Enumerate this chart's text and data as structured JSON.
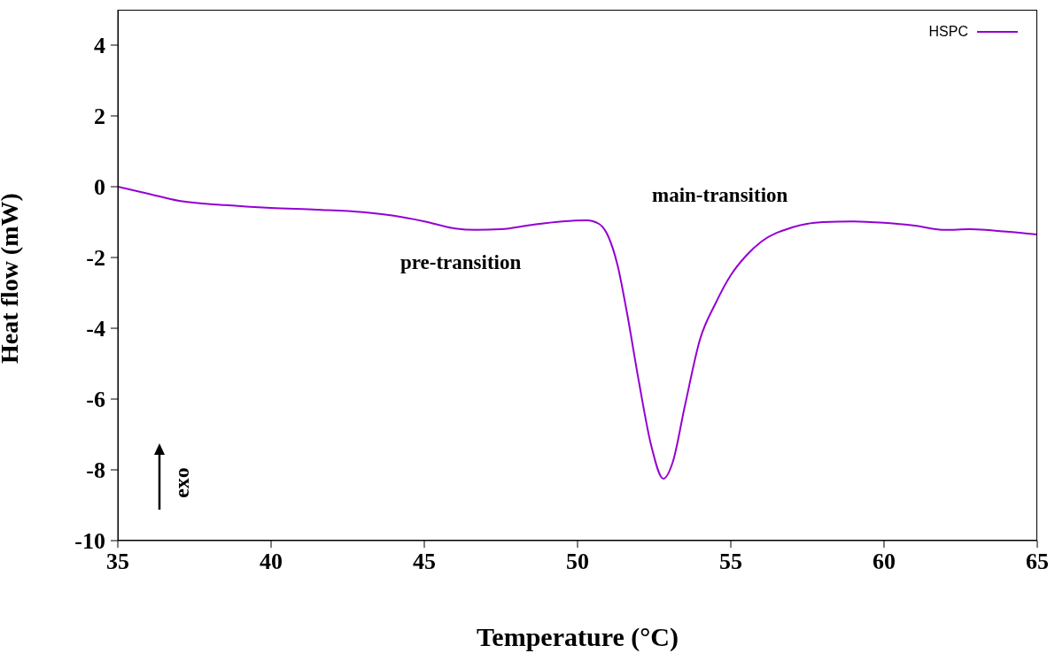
{
  "chart_data": {
    "type": "line",
    "xlabel": "Temperature (°C)",
    "ylabel": "Heat flow (mW)",
    "xlim": [
      35,
      65
    ],
    "xticks": [
      35,
      40,
      45,
      50,
      55,
      60,
      65
    ],
    "ylim": [
      -10,
      5
    ],
    "yticks": [
      -10,
      -8,
      -6,
      -4,
      -2,
      0,
      2,
      4
    ],
    "grid": false,
    "legend": "top right",
    "marker": "none",
    "line_style": "solid",
    "series": [
      {
        "name": "HSPC",
        "color": "#9400d3",
        "x": [
          35,
          36,
          37,
          38.5,
          40,
          41.5,
          43,
          44,
          45,
          46,
          46.7,
          47.5,
          48.5,
          49.5,
          50.3,
          50.7,
          51,
          51.3,
          51.6,
          52,
          52.4,
          52.8,
          53.1,
          53.5,
          54,
          54.5,
          55,
          55.5,
          56,
          57,
          58,
          59,
          60,
          61,
          62,
          62.8,
          64,
          65
        ],
        "values": [
          0,
          -0.2,
          -0.4,
          -0.52,
          -0.6,
          -0.65,
          -0.72,
          -0.82,
          -0.98,
          -1.18,
          -1.22,
          -1.2,
          -1.08,
          -0.98,
          -0.95,
          -1.05,
          -1.4,
          -2.2,
          -3.5,
          -5.5,
          -7.3,
          -8.25,
          -7.8,
          -6.2,
          -4.3,
          -3.3,
          -2.5,
          -1.95,
          -1.55,
          -1.15,
          -1.0,
          -0.98,
          -1.02,
          -1.1,
          -1.22,
          -1.2,
          -1.27,
          -1.35
        ]
      }
    ],
    "annotations": [
      "pre-transition",
      "main-transition",
      "exo"
    ]
  }
}
